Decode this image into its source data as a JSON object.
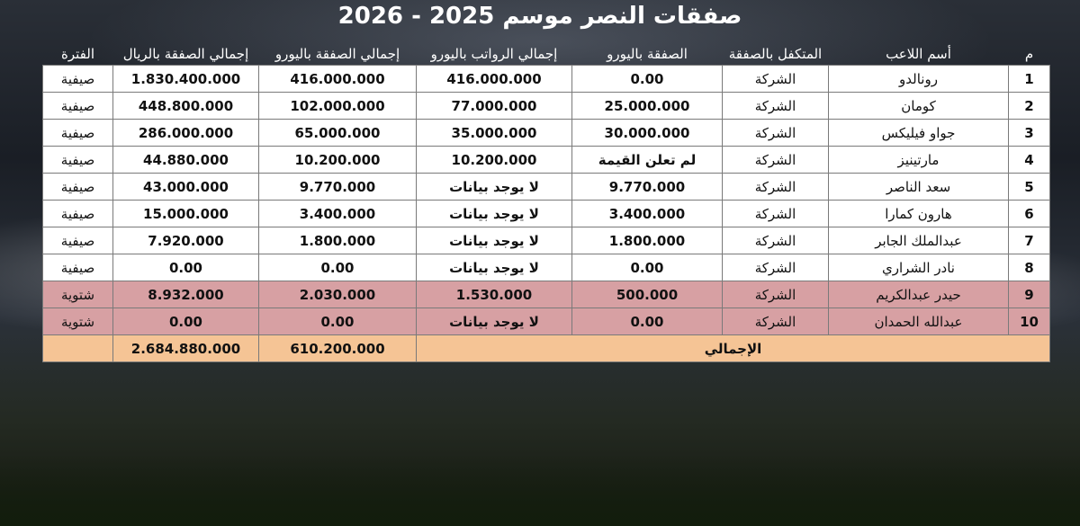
{
  "title": "صفقات النصر موسم 2025 - 2026",
  "headers": {
    "index": "م",
    "player": "أسم اللاعب",
    "sponsor": "المتكفل بالصفقة",
    "deal_euro": "الصفقة باليورو",
    "salary_euro": "إجمالي الرواتب باليورو",
    "total_euro": "إجمالي الصفقة باليورو",
    "total_riyal": "إجمالي الصفقة بالريال",
    "period": "الفترة"
  },
  "rows": [
    {
      "index": "1",
      "player": "رونالدو",
      "sponsor": "الشركة",
      "deal_euro": "0.00",
      "salary_euro": "416.000.000",
      "total_euro": "416.000.000",
      "total_riyal": "1.830.400.000",
      "period": "صيفية"
    },
    {
      "index": "2",
      "player": "كومان",
      "sponsor": "الشركة",
      "deal_euro": "25.000.000",
      "salary_euro": "77.000.000",
      "total_euro": "102.000.000",
      "total_riyal": "448.800.000",
      "period": "صيفية"
    },
    {
      "index": "3",
      "player": "جواو فيليكس",
      "sponsor": "الشركة",
      "deal_euro": "30.000.000",
      "salary_euro": "35.000.000",
      "total_euro": "65.000.000",
      "total_riyal": "286.000.000",
      "period": "صيفية"
    },
    {
      "index": "4",
      "player": "مارتينيز",
      "sponsor": "الشركة",
      "deal_euro": "لم تعلن القيمة",
      "salary_euro": "10.200.000",
      "total_euro": "10.200.000",
      "total_riyal": "44.880.000",
      "period": "صيفية"
    },
    {
      "index": "5",
      "player": "سعد الناصر",
      "sponsor": "الشركة",
      "deal_euro": "9.770.000",
      "salary_euro": "لا يوجد بيانات",
      "total_euro": "9.770.000",
      "total_riyal": "43.000.000",
      "period": "صيفية"
    },
    {
      "index": "6",
      "player": "هارون كمارا",
      "sponsor": "الشركة",
      "deal_euro": "3.400.000",
      "salary_euro": "لا يوجد بيانات",
      "total_euro": "3.400.000",
      "total_riyal": "15.000.000",
      "period": "صيفية"
    },
    {
      "index": "7",
      "player": "عبدالملك الجابر",
      "sponsor": "الشركة",
      "deal_euro": "1.800.000",
      "salary_euro": "لا يوجد بيانات",
      "total_euro": "1.800.000",
      "total_riyal": "7.920.000",
      "period": "صيفية"
    },
    {
      "index": "8",
      "player": "نادر الشراري",
      "sponsor": "الشركة",
      "deal_euro": "0.00",
      "salary_euro": "لا يوجد بيانات",
      "total_euro": "0.00",
      "total_riyal": "0.00",
      "period": "صيفية"
    },
    {
      "index": "9",
      "player": "حيدر عبدالكريم",
      "sponsor": "الشركة",
      "deal_euro": "500.000",
      "salary_euro": "1.530.000",
      "total_euro": "2.030.000",
      "total_riyal": "8.932.000",
      "period": "شتوية"
    },
    {
      "index": "10",
      "player": "عبدالله الحمدان",
      "sponsor": "الشركة",
      "deal_euro": "0.00",
      "salary_euro": "لا يوجد بيانات",
      "total_euro": "0.00",
      "total_riyal": "0.00",
      "period": "شتوية"
    }
  ],
  "total": {
    "label": "الإجمالي",
    "total_euro": "610.200.000",
    "total_riyal": "2.684.880.000"
  },
  "colors": {
    "winter_row": "#d7a0a3",
    "total_row": "#f5c495",
    "red_text": "#b02020"
  }
}
